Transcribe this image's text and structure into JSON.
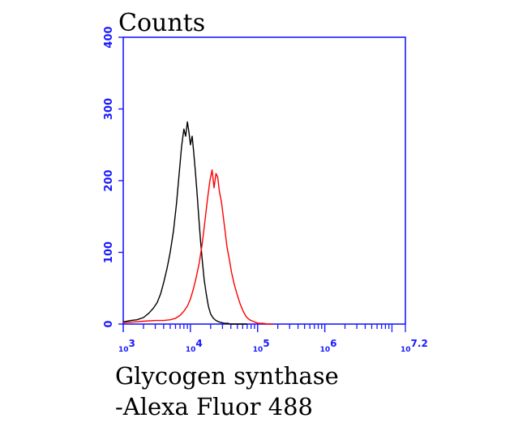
{
  "chart_data": {
    "type": "line",
    "title": "",
    "ylabel": "Counts",
    "xlabel_lines": [
      "Glycogen synthase",
      "-Alexa Fluor 488"
    ],
    "xscale": "log",
    "xlim": [
      1000,
      15848932
    ],
    "ylim": [
      0,
      400
    ],
    "yticks": [
      0,
      100,
      200,
      300,
      400
    ],
    "xticks": [
      {
        "base": "10",
        "exp": "3",
        "value": 1000
      },
      {
        "base": "10",
        "exp": "4",
        "value": 10000
      },
      {
        "base": "10",
        "exp": "5",
        "value": 100000
      },
      {
        "base": "10",
        "exp": "6",
        "value": 1000000
      },
      {
        "base": "10",
        "exp": "7.2",
        "value": 15848932
      }
    ],
    "grid": false,
    "colors": {
      "axis": "#1a1aff",
      "control": "#000000",
      "sample": "#ff0000"
    },
    "series": [
      {
        "color": "#000000",
        "x": [
          1000,
          1300,
          1600,
          2000,
          2400,
          2800,
          3200,
          3600,
          4000,
          4500,
          5000,
          5600,
          6200,
          6800,
          7400,
          8000,
          8500,
          9000,
          9500,
          10000,
          10600,
          11200,
          11800,
          12500,
          13300,
          14100,
          15000,
          16000,
          17200,
          18500,
          20000,
          22000,
          24000,
          26500,
          29000,
          32000,
          36000,
          40000,
          46000,
          55000,
          70000
        ],
        "y": [
          3,
          5,
          6,
          9,
          15,
          22,
          30,
          42,
          58,
          78,
          100,
          130,
          168,
          210,
          248,
          272,
          262,
          282,
          268,
          250,
          262,
          240,
          215,
          185,
          150,
          118,
          90,
          62,
          42,
          25,
          14,
          8,
          5,
          3,
          2,
          1,
          1,
          0,
          0,
          0,
          0
        ]
      },
      {
        "color": "#ff0000",
        "x": [
          1000,
          1500,
          2000,
          3000,
          4000,
          5000,
          6000,
          7000,
          8000,
          9000,
          10000,
          11000,
          12000,
          13500,
          15000,
          16500,
          18000,
          19500,
          21000,
          22500,
          24000,
          25500,
          27000,
          29000,
          31000,
          33000,
          35000,
          38000,
          41000,
          45000,
          50000,
          55000,
          61000,
          68000,
          76000,
          85000,
          95000,
          105000,
          120000,
          140000,
          170000
        ],
        "y": [
          2,
          3,
          4,
          5,
          5,
          6,
          8,
          12,
          18,
          25,
          35,
          48,
          62,
          85,
          112,
          145,
          175,
          200,
          215,
          190,
          210,
          205,
          185,
          170,
          148,
          128,
          108,
          90,
          72,
          55,
          40,
          28,
          18,
          10,
          6,
          4,
          2,
          1,
          1,
          0,
          0
        ]
      }
    ]
  }
}
